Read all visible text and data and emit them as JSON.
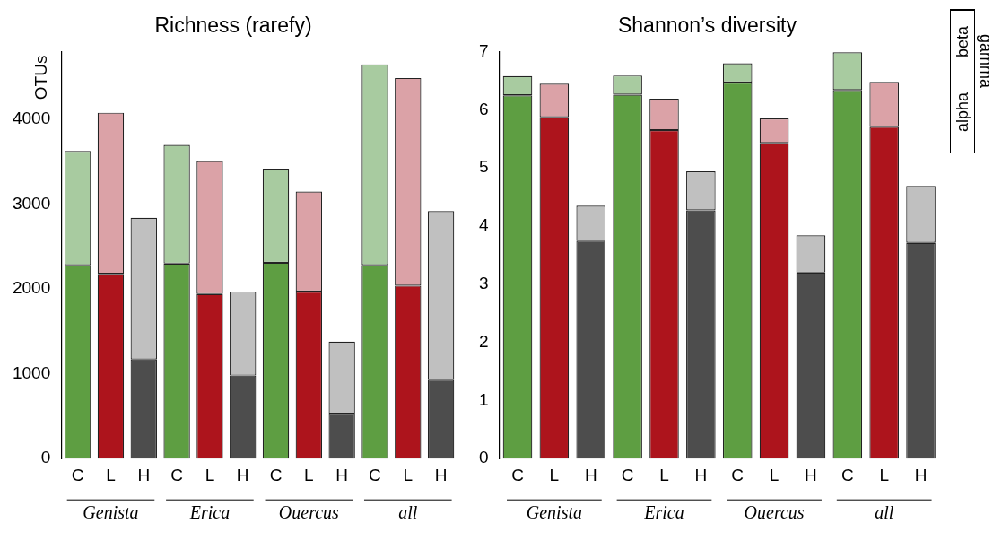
{
  "chart_data": [
    {
      "type": "bar",
      "title": "Richness (rarefy)",
      "ylabel": "OTUs",
      "stacked": true,
      "categories": [
        "C",
        "L",
        "H",
        "C",
        "L",
        "H",
        "C",
        "L",
        "H",
        "C",
        "L",
        "H"
      ],
      "series": [
        {
          "colors": [
            "#5e9e42",
            "#ad141c",
            "#4d4d4d",
            "#5e9e42",
            "#ad141c",
            "#4d4d4d",
            "#5e9e42",
            "#ad141c",
            "#4d4d4d",
            "#5e9e42",
            "#ad141c",
            "#4d4d4d"
          ],
          "values": [
            2280,
            2180,
            1170,
            2300,
            1940,
            980,
            2310,
            1970,
            530,
            2280,
            2040,
            930
          ]
        },
        {
          "colors": [
            "#a8cba0",
            "#dba2a7",
            "#c0c0c0",
            "#a8cba0",
            "#dba2a7",
            "#c0c0c0",
            "#a8cba0",
            "#dba2a7",
            "#c0c0c0",
            "#a8cba0",
            "#dba2a7",
            "#c0c0c0"
          ],
          "values": [
            1350,
            1900,
            1670,
            1400,
            1570,
            990,
            1110,
            1180,
            850,
            2370,
            2450,
            1990
          ]
        }
      ],
      "ylim": [
        0,
        4800
      ],
      "yticks": [
        0,
        1000,
        2000,
        3000,
        4000
      ],
      "grid": false,
      "legend": false,
      "annotations": [
        "Genista",
        "Erica",
        "Ouercus",
        "all"
      ]
    },
    {
      "type": "bar",
      "title": "Shannon’s diversity",
      "stacked": true,
      "categories": [
        "C",
        "L",
        "H",
        "C",
        "L",
        "H",
        "C",
        "L",
        "H",
        "C",
        "L",
        "H"
      ],
      "series": [
        {
          "name": "alpha",
          "colors": [
            "#5e9e42",
            "#ad141c",
            "#4d4d4d",
            "#5e9e42",
            "#ad141c",
            "#4d4d4d",
            "#5e9e42",
            "#ad141c",
            "#4d4d4d",
            "#5e9e42",
            "#ad141c",
            "#4d4d4d"
          ],
          "values": [
            6.25,
            5.87,
            3.75,
            6.26,
            5.65,
            4.27,
            6.47,
            5.43,
            3.2,
            6.34,
            5.71,
            3.71
          ]
        },
        {
          "name": "beta",
          "colors": [
            "#a8cba0",
            "#dba2a7",
            "#c0c0c0",
            "#a8cba0",
            "#dba2a7",
            "#c0c0c0",
            "#a8cba0",
            "#dba2a7",
            "#c0c0c0",
            "#a8cba0",
            "#dba2a7",
            "#c0c0c0"
          ],
          "values": [
            0.33,
            0.58,
            0.6,
            0.33,
            0.54,
            0.67,
            0.33,
            0.42,
            0.64,
            0.65,
            0.77,
            0.98
          ]
        }
      ],
      "ylim": [
        0,
        7
      ],
      "yticks": [
        0,
        1,
        2,
        3,
        4,
        5,
        6,
        7
      ],
      "grid": false,
      "legend": "top right",
      "annotations": [
        "Genista",
        "Erica",
        "Ouercus",
        "all",
        "gamma"
      ]
    }
  ]
}
